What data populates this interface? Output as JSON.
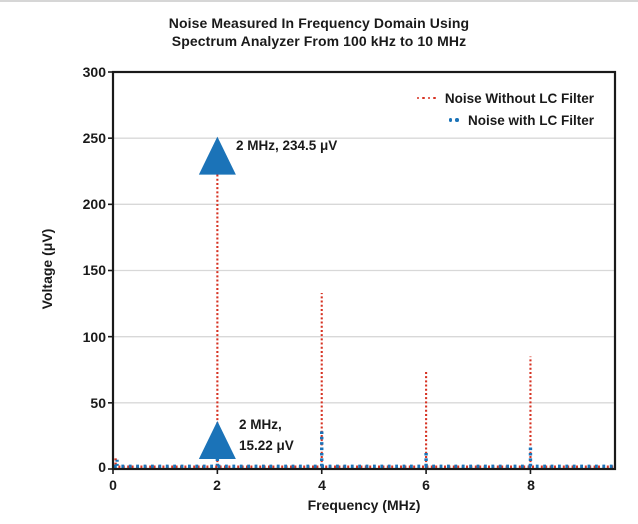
{
  "title": {
    "line1": "Noise Measured In Frequency Domain Using",
    "line2": "Spectrum Analyzer From 100 kHz to 10 MHz"
  },
  "colors": {
    "red": "#d63222",
    "blue": "#1b73b8",
    "grid": "#d8d8d8",
    "axis": "#1a1a1a",
    "text": "#1a1a1a",
    "background": "#ffffff"
  },
  "chart_data": {
    "type": "line",
    "title": "Noise Measured In Frequency Domain Using Spectrum Analyzer From 100 kHz to 10 MHz",
    "title_lines": [
      "Noise Measured In Frequency Domain Using",
      "Spectrum Analyzer From 100 kHz to 10 MHz"
    ],
    "xlabel": "Frequency (MHz)",
    "ylabel": "Voltage (μV)",
    "xlim": [
      0,
      9.62
    ],
    "ylim": [
      0,
      300
    ],
    "xticks": [
      0,
      2,
      4,
      6,
      8
    ],
    "yticks": [
      0,
      50,
      100,
      150,
      200,
      250,
      300
    ],
    "grid": "horizontal",
    "legend_position": "upper right",
    "line_style": "dotted",
    "series": [
      {
        "name": "Noise Without LC Filter",
        "color": "#d63222",
        "style": "dotted",
        "baseline_uv": 2,
        "start_bump": {
          "x": 0.05,
          "y": 8
        },
        "spikes": [
          {
            "x": 2,
            "y": 234.5
          },
          {
            "x": 4,
            "y": 133
          },
          {
            "x": 6,
            "y": 75
          },
          {
            "x": 8,
            "y": 85
          }
        ]
      },
      {
        "name": "Noise with LC Filter",
        "color": "#1b73b8",
        "style": "dotted",
        "baseline_uv": 2,
        "start_bump": {
          "x": 0.05,
          "y": 7
        },
        "spikes": [
          {
            "x": 2,
            "y": 15.22
          },
          {
            "x": 4,
            "y": 30
          },
          {
            "x": 6,
            "y": 14
          },
          {
            "x": 8,
            "y": 17
          }
        ]
      }
    ],
    "annotations": [
      {
        "text": "2 MHz, 234.5 μV",
        "lines": [
          "2 MHz, 234.5 μV"
        ],
        "point": {
          "x": 2,
          "y": 234.5
        },
        "marker": "up-triangle",
        "marker_color": "#1b73b8"
      },
      {
        "text": "2 MHz, 15.22 μV",
        "lines": [
          "2 MHz,",
          "15.22 μV"
        ],
        "point": {
          "x": 2,
          "y": 15.22
        },
        "marker": "up-triangle",
        "marker_color": "#1b73b8"
      }
    ]
  }
}
